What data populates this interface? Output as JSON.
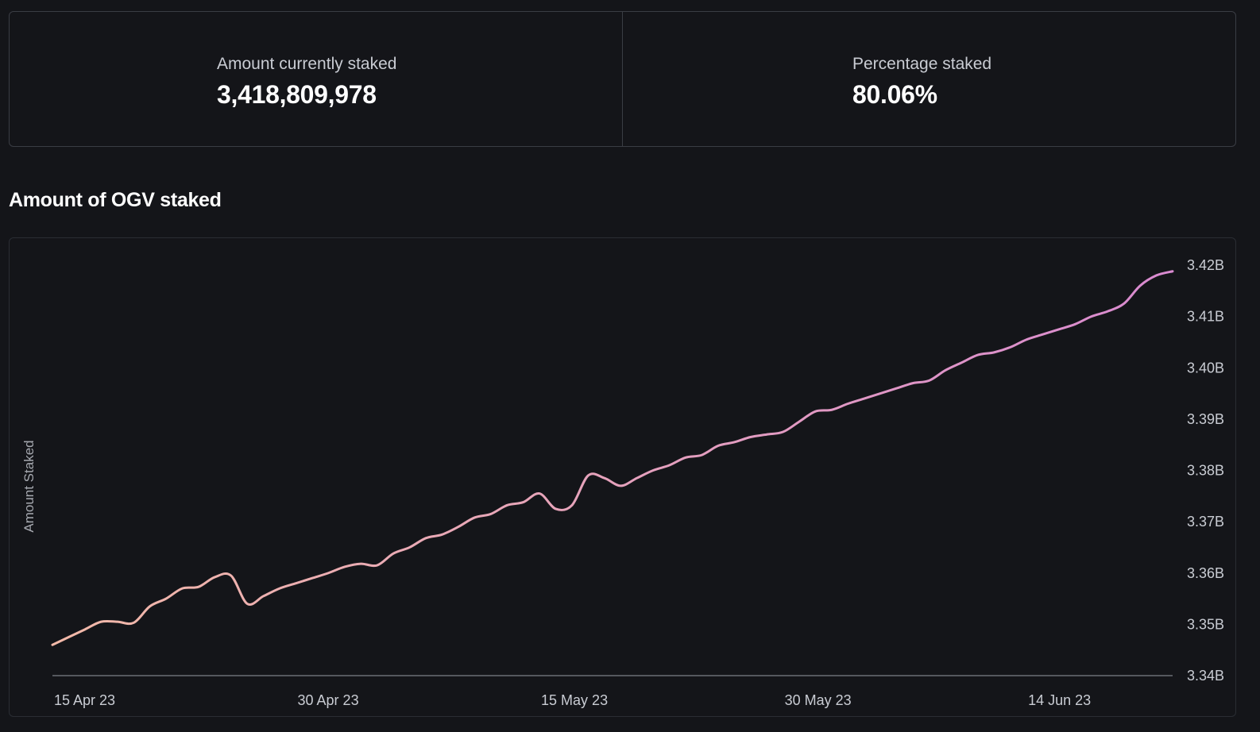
{
  "stats": [
    {
      "label": "Amount currently staked",
      "value": "3,418,809,978"
    },
    {
      "label": "Percentage staked",
      "value": "80.06%"
    }
  ],
  "section_title": "Amount of OGV staked",
  "chart_data": {
    "type": "line",
    "title": "Amount of OGV staked",
    "xlabel": "",
    "ylabel": "Amount Staked",
    "y_unit": "billions",
    "ylim": [
      3.34,
      3.42
    ],
    "xlim": [
      "2023-04-15",
      "2023-06-23"
    ],
    "yticks": [
      3.34,
      3.35,
      3.36,
      3.37,
      3.38,
      3.39,
      3.4,
      3.41,
      3.42
    ],
    "ytick_labels": [
      "3.34B",
      "3.35B",
      "3.36B",
      "3.37B",
      "3.38B",
      "3.39B",
      "3.40B",
      "3.41B",
      "3.42B"
    ],
    "xticks": [
      "2023-04-15",
      "2023-04-30",
      "2023-05-15",
      "2023-05-30",
      "2023-06-14"
    ],
    "xtick_labels": [
      "15 Apr 23",
      "30 Apr 23",
      "15 May 23",
      "30 May 23",
      "14 Jun 23"
    ],
    "y_axis_side": "right",
    "grid": false,
    "legend": "none",
    "line_gradient": [
      "#f2b9a8",
      "#d98ad0"
    ],
    "series": [
      {
        "x": [
          "2023-04-15",
          "2023-04-16",
          "2023-04-17",
          "2023-04-18",
          "2023-04-19",
          "2023-04-20",
          "2023-04-21",
          "2023-04-22",
          "2023-04-23",
          "2023-04-24",
          "2023-04-25",
          "2023-04-26",
          "2023-04-27",
          "2023-04-28",
          "2023-04-29",
          "2023-04-30",
          "2023-05-01",
          "2023-05-02",
          "2023-05-03",
          "2023-05-04",
          "2023-05-05",
          "2023-05-06",
          "2023-05-07",
          "2023-05-08",
          "2023-05-09",
          "2023-05-10",
          "2023-05-11",
          "2023-05-12",
          "2023-05-13",
          "2023-05-14",
          "2023-05-15",
          "2023-05-16",
          "2023-05-17",
          "2023-05-18",
          "2023-05-19",
          "2023-05-20",
          "2023-05-21",
          "2023-05-22",
          "2023-05-23",
          "2023-05-24",
          "2023-05-25",
          "2023-05-26",
          "2023-05-27",
          "2023-05-28",
          "2023-05-29",
          "2023-05-30",
          "2023-05-31",
          "2023-06-01",
          "2023-06-02",
          "2023-06-03",
          "2023-06-04",
          "2023-06-05",
          "2023-06-06",
          "2023-06-07",
          "2023-06-08",
          "2023-06-09",
          "2023-06-10",
          "2023-06-11",
          "2023-06-12",
          "2023-06-13",
          "2023-06-14",
          "2023-06-15",
          "2023-06-16",
          "2023-06-17",
          "2023-06-18",
          "2023-06-19",
          "2023-06-20",
          "2023-06-21",
          "2023-06-22",
          "2023-06-23"
        ],
        "values": [
          3.346,
          3.3475,
          3.349,
          3.3505,
          3.3505,
          3.3503,
          3.3535,
          3.355,
          3.357,
          3.3573,
          3.3592,
          3.3595,
          3.354,
          3.3555,
          3.357,
          3.358,
          3.359,
          3.36,
          3.3612,
          3.3618,
          3.3615,
          3.3638,
          3.365,
          3.3668,
          3.3675,
          3.369,
          3.3708,
          3.3715,
          3.3732,
          3.3738,
          3.3755,
          3.3725,
          3.3732,
          3.379,
          3.3785,
          3.377,
          3.3785,
          3.38,
          3.381,
          3.3825,
          3.383,
          3.3848,
          3.3855,
          3.3865,
          3.387,
          3.3875,
          3.3895,
          3.3915,
          3.3918,
          3.393,
          3.394,
          3.395,
          3.396,
          3.397,
          3.3975,
          3.3995,
          3.401,
          3.4025,
          3.403,
          3.404,
          3.4055,
          3.4065,
          3.4075,
          3.4085,
          3.41,
          3.411,
          3.4125,
          3.416,
          3.418,
          3.4188
        ]
      }
    ]
  }
}
